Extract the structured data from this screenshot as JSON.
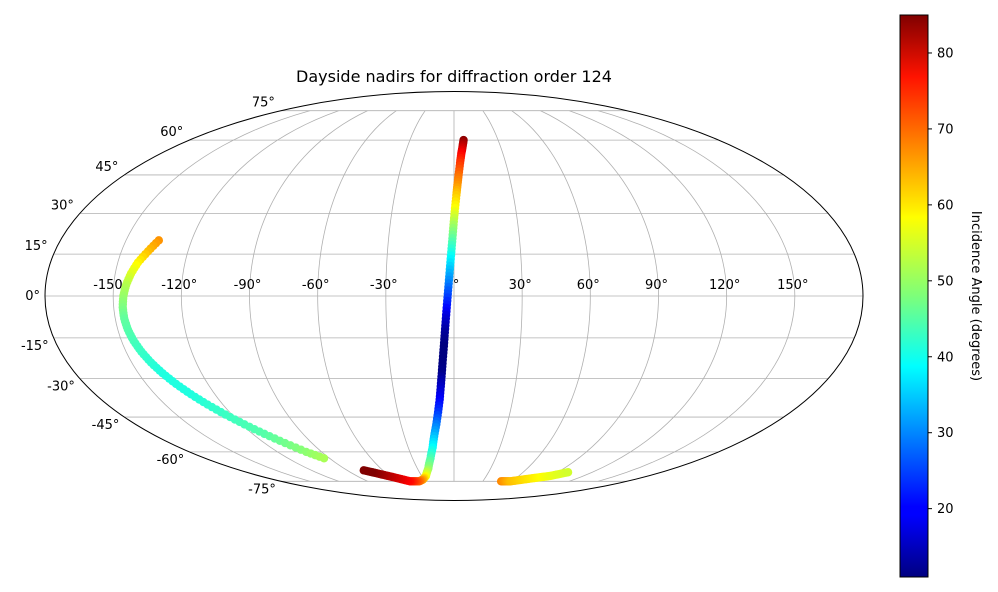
{
  "chart_data": {
    "type": "scatter",
    "projection": "mollweide",
    "title": "Dayside nadirs for diffraction order 124",
    "xlabel": "",
    "ylabel": "",
    "xlim": [
      -180,
      180
    ],
    "ylim": [
      -90,
      90
    ],
    "grid": true,
    "lon_ticks": [
      {
        "value": -150,
        "label": "-150°"
      },
      {
        "value": -120,
        "label": "-120°"
      },
      {
        "value": -90,
        "label": "-90°"
      },
      {
        "value": -60,
        "label": "-60°"
      },
      {
        "value": -30,
        "label": "-30°"
      },
      {
        "value": 0,
        "label": "0°"
      },
      {
        "value": 30,
        "label": "30°"
      },
      {
        "value": 60,
        "label": "60°"
      },
      {
        "value": 90,
        "label": "90°"
      },
      {
        "value": 120,
        "label": "120°"
      },
      {
        "value": 150,
        "label": "150°"
      }
    ],
    "lat_ticks": [
      {
        "value": 75,
        "label": "75°"
      },
      {
        "value": 60,
        "label": "60°"
      },
      {
        "value": 45,
        "label": "45°"
      },
      {
        "value": 30,
        "label": "30°"
      },
      {
        "value": 15,
        "label": "15°"
      },
      {
        "value": 0,
        "label": "0°"
      },
      {
        "value": -15,
        "label": "-15°"
      },
      {
        "value": -30,
        "label": "-30°"
      },
      {
        "value": -45,
        "label": "-45°"
      },
      {
        "value": -60,
        "label": "-60°"
      },
      {
        "value": -75,
        "label": "-75°"
      }
    ],
    "colorbar": {
      "label": "Incidence Angle (degrees)",
      "min": 11,
      "max": 85,
      "colormap": "jet",
      "ticks": [
        {
          "value": 20,
          "label": "20"
        },
        {
          "value": 30,
          "label": "30"
        },
        {
          "value": 40,
          "label": "40"
        },
        {
          "value": 50,
          "label": "50"
        },
        {
          "value": 60,
          "label": "60"
        },
        {
          "value": 70,
          "label": "70"
        },
        {
          "value": 80,
          "label": "80"
        }
      ]
    },
    "series": [
      {
        "points": [
          {
            "lon": 6.5,
            "lat": 60,
            "value": 84
          },
          {
            "lon": 5.5,
            "lat": 57,
            "value": 80
          },
          {
            "lon": 4.5,
            "lat": 54,
            "value": 76
          },
          {
            "lon": 3.5,
            "lat": 50,
            "value": 72
          },
          {
            "lon": 2.5,
            "lat": 45,
            "value": 68
          },
          {
            "lon": 1.8,
            "lat": 41,
            "value": 65
          },
          {
            "lon": 1.2,
            "lat": 37,
            "value": 61
          },
          {
            "lon": 0.5,
            "lat": 32,
            "value": 57
          },
          {
            "lon": -0.1,
            "lat": 27,
            "value": 52
          },
          {
            "lon": -0.6,
            "lat": 22,
            "value": 47
          },
          {
            "lon": -1.1,
            "lat": 17,
            "value": 42
          },
          {
            "lon": -1.6,
            "lat": 12,
            "value": 37
          },
          {
            "lon": -2.1,
            "lat": 7,
            "value": 32
          },
          {
            "lon": -2.6,
            "lat": 2,
            "value": 27
          },
          {
            "lon": -3.1,
            "lat": -3,
            "value": 22
          },
          {
            "lon": -3.6,
            "lat": -8,
            "value": 17
          },
          {
            "lon": -4.1,
            "lat": -13,
            "value": 13
          },
          {
            "lon": -4.6,
            "lat": -18,
            "value": 11
          },
          {
            "lon": -5.2,
            "lat": -23,
            "value": 11
          },
          {
            "lon": -5.8,
            "lat": -28,
            "value": 12
          },
          {
            "lon": -6.5,
            "lat": -33,
            "value": 16
          },
          {
            "lon": -7.3,
            "lat": -38,
            "value": 20
          },
          {
            "lon": -8.5,
            "lat": -43,
            "value": 24
          },
          {
            "lon": -10,
            "lat": -48,
            "value": 29
          },
          {
            "lon": -12,
            "lat": -53,
            "value": 34
          },
          {
            "lon": -14,
            "lat": -58,
            "value": 39
          },
          {
            "lon": -17,
            "lat": -63,
            "value": 44
          },
          {
            "lon": -21,
            "lat": -68,
            "value": 49
          },
          {
            "lon": -26,
            "lat": -72,
            "value": 56
          },
          {
            "lon": -31,
            "lat": -74,
            "value": 63
          },
          {
            "lon": -36,
            "lat": -75,
            "value": 68
          },
          {
            "lon": -41,
            "lat": -75,
            "value": 72
          },
          {
            "lon": -46,
            "lat": -75,
            "value": 75
          },
          {
            "lon": -51,
            "lat": -74,
            "value": 77
          },
          {
            "lon": -56,
            "lat": -73,
            "value": 79
          },
          {
            "lon": -61,
            "lat": -72,
            "value": 81
          },
          {
            "lon": -66,
            "lat": -71,
            "value": 83
          },
          {
            "lon": -71,
            "lat": -70,
            "value": 85
          },
          {
            "lon": -76,
            "lat": -69,
            "value": 85
          },
          {
            "lon": -135,
            "lat": 20,
            "value": 65
          },
          {
            "lon": -138,
            "lat": 16,
            "value": 62
          },
          {
            "lon": -141,
            "lat": 12,
            "value": 58
          },
          {
            "lon": -143,
            "lat": 8,
            "value": 55
          },
          {
            "lon": -144.5,
            "lat": 4,
            "value": 52
          },
          {
            "lon": -145.5,
            "lat": 0,
            "value": 50
          },
          {
            "lon": -146,
            "lat": -4,
            "value": 48
          },
          {
            "lon": -146,
            "lat": -8,
            "value": 46
          },
          {
            "lon": -145.5,
            "lat": -12,
            "value": 45
          },
          {
            "lon": -144.5,
            "lat": -16,
            "value": 44
          },
          {
            "lon": -143,
            "lat": -20,
            "value": 43
          },
          {
            "lon": -141,
            "lat": -24,
            "value": 42
          },
          {
            "lon": -138.5,
            "lat": -28,
            "value": 41
          },
          {
            "lon": -135.5,
            "lat": -32,
            "value": 41
          },
          {
            "lon": -132,
            "lat": -36,
            "value": 41
          },
          {
            "lon": -128,
            "lat": -40,
            "value": 42
          },
          {
            "lon": -123.5,
            "lat": -44,
            "value": 43
          },
          {
            "lon": -118.5,
            "lat": -48,
            "value": 44
          },
          {
            "lon": -113,
            "lat": -52,
            "value": 45
          },
          {
            "lon": -107,
            "lat": -56,
            "value": 47
          },
          {
            "lon": -100.5,
            "lat": -60,
            "value": 49
          },
          {
            "lon": -94,
            "lat": -63,
            "value": 51
          },
          {
            "lon": 49,
            "lat": -75,
            "value": 66
          },
          {
            "lon": 54,
            "lat": -75,
            "value": 64
          },
          {
            "lon": 59,
            "lat": -75,
            "value": 62
          },
          {
            "lon": 64,
            "lat": -74.5,
            "value": 61
          },
          {
            "lon": 69,
            "lat": -74,
            "value": 60
          },
          {
            "lon": 74,
            "lat": -73.5,
            "value": 59
          },
          {
            "lon": 79,
            "lat": -73,
            "value": 58
          },
          {
            "lon": 84,
            "lat": -72.5,
            "value": 57
          },
          {
            "lon": 89,
            "lat": -72,
            "value": 56
          },
          {
            "lon": 94,
            "lat": -71,
            "value": 55
          },
          {
            "lon": 99,
            "lat": -70,
            "value": 54
          }
        ]
      }
    ]
  }
}
